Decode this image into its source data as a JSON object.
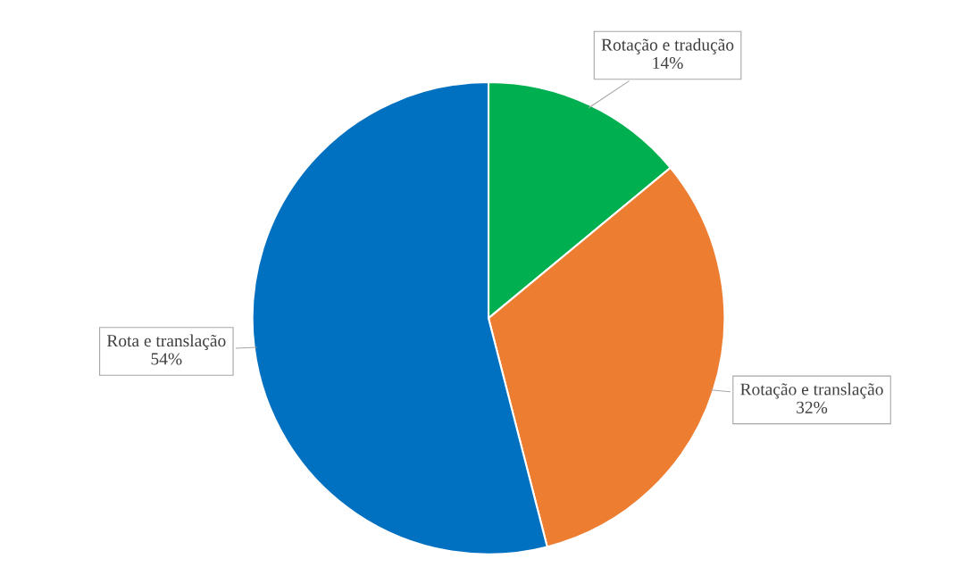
{
  "chart_data": {
    "type": "pie",
    "categories": [
      "Rotação e tradução",
      "Rotação e translação",
      "Rota e translação"
    ],
    "values": [
      14,
      32,
      54
    ],
    "colors": [
      "#00b050",
      "#ed7d31",
      "#0070c0"
    ],
    "value_labels": [
      "14%",
      "32%",
      "54%"
    ],
    "legend": false
  }
}
